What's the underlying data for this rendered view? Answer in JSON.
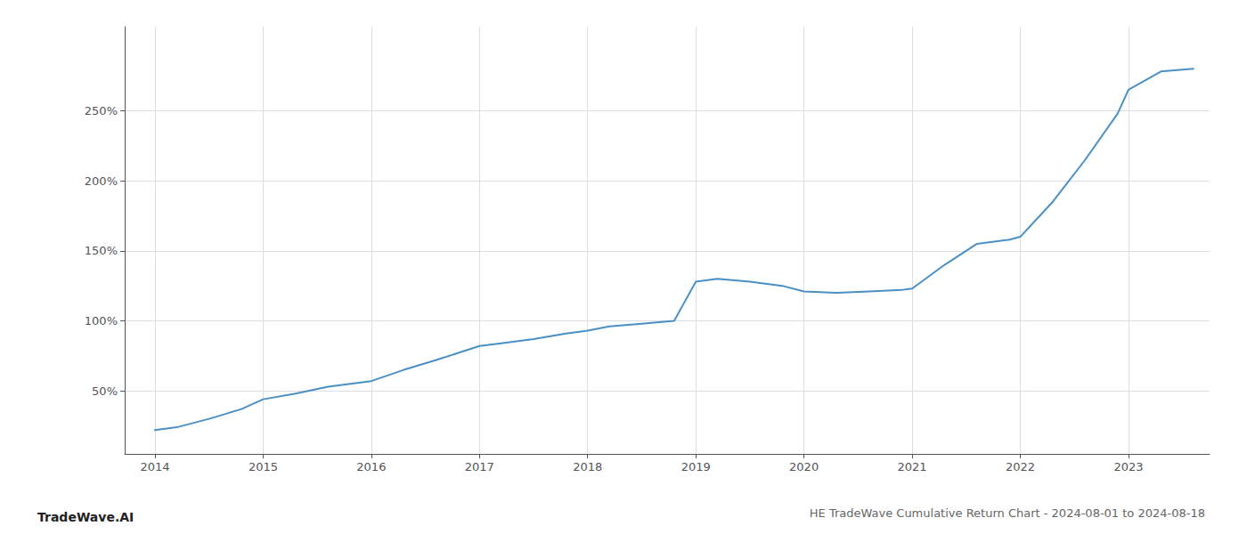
{
  "chart_data": {
    "type": "line",
    "title": "HE TradeWave Cumulative Return Chart - 2024-08-01 to 2024-08-18",
    "annotations": [
      "TradeWave.AI"
    ],
    "x": [
      2014.0,
      2014.2,
      2014.5,
      2014.8,
      2015.0,
      2015.3,
      2015.6,
      2016.0,
      2016.3,
      2016.6,
      2017.0,
      2017.2,
      2017.5,
      2017.8,
      2018.0,
      2018.2,
      2018.5,
      2018.8,
      2019.0,
      2019.2,
      2019.5,
      2019.8,
      2020.0,
      2020.3,
      2020.6,
      2020.9,
      2021.0,
      2021.3,
      2021.6,
      2021.9,
      2022.0,
      2022.3,
      2022.6,
      2022.9,
      2023.0,
      2023.3,
      2023.6
    ],
    "values": [
      22,
      24,
      30,
      37,
      44,
      48,
      53,
      57,
      65,
      72,
      82,
      84,
      87,
      91,
      93,
      96,
      98,
      100,
      128,
      130,
      128,
      125,
      121,
      120,
      121,
      122,
      123,
      140,
      155,
      158,
      160,
      185,
      215,
      248,
      265,
      278,
      280
    ],
    "color": "#4a90c4",
    "xlim": [
      2013.72,
      2023.75
    ],
    "xticks": [
      2014,
      2015,
      2016,
      2017,
      2018,
      2019,
      2020,
      2021,
      2022,
      2023
    ],
    "ylim": [
      5,
      310
    ],
    "yticks": [
      {
        "value": 50,
        "label": "50%"
      },
      {
        "value": 100,
        "label": "100%"
      },
      {
        "value": 150,
        "label": "150%"
      },
      {
        "value": 200,
        "label": "200%"
      },
      {
        "value": 250,
        "label": "250%"
      }
    ],
    "grid": true
  }
}
